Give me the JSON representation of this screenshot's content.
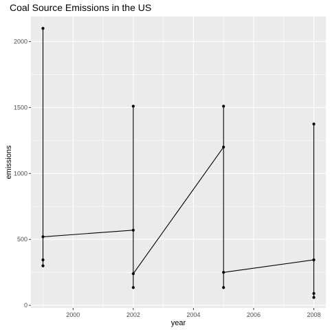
{
  "chart_data": {
    "type": "line",
    "title": "Coal Source Emissions in the US",
    "xlabel": "year",
    "ylabel": "emissions",
    "xlim": [
      1998.6,
      2008.4
    ],
    "ylim": [
      -20,
      2190
    ],
    "x_ticks": [
      2000,
      2002,
      2004,
      2006,
      2008
    ],
    "x_tick_labels": [
      "2000",
      "2002",
      "2004",
      "2006",
      "2008"
    ],
    "y_ticks": [
      0,
      500,
      1000,
      1500,
      2000
    ],
    "y_tick_labels": [
      "0",
      "500",
      "1000",
      "1500",
      "2000"
    ],
    "grid": true,
    "panel_background": "#ebebeb",
    "grid_major_color": "#ffffff",
    "mark_color": "#000000",
    "points": [
      {
        "x": 1999,
        "y": 2100
      },
      {
        "x": 1999,
        "y": 520
      },
      {
        "x": 1999,
        "y": 345
      },
      {
        "x": 1999,
        "y": 300
      },
      {
        "x": 2002,
        "y": 1510
      },
      {
        "x": 2002,
        "y": 570
      },
      {
        "x": 2002,
        "y": 240
      },
      {
        "x": 2002,
        "y": 135
      },
      {
        "x": 2005,
        "y": 1510
      },
      {
        "x": 2005,
        "y": 1200
      },
      {
        "x": 2005,
        "y": 250
      },
      {
        "x": 2005,
        "y": 135
      },
      {
        "x": 2008,
        "y": 1375
      },
      {
        "x": 2008,
        "y": 345
      },
      {
        "x": 2008,
        "y": 90
      },
      {
        "x": 2008,
        "y": 60
      }
    ],
    "path": [
      {
        "x": 1999,
        "y": 2100
      },
      {
        "x": 1999,
        "y": 300
      },
      {
        "x": 1999,
        "y": 520
      },
      {
        "x": 2002,
        "y": 570
      },
      {
        "x": 2002,
        "y": 1510
      },
      {
        "x": 2002,
        "y": 135
      },
      {
        "x": 2002,
        "y": 240
      },
      {
        "x": 2005,
        "y": 1200
      },
      {
        "x": 2005,
        "y": 1510
      },
      {
        "x": 2005,
        "y": 135
      },
      {
        "x": 2005,
        "y": 250
      },
      {
        "x": 2008,
        "y": 345
      },
      {
        "x": 2008,
        "y": 1375
      },
      {
        "x": 2008,
        "y": 60
      }
    ]
  }
}
